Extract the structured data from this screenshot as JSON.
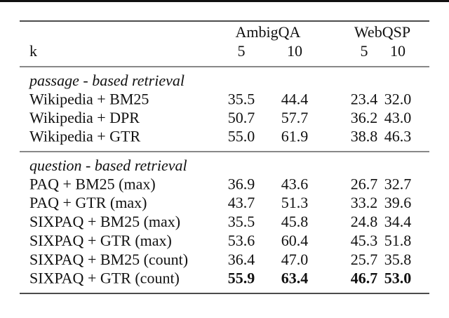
{
  "table": {
    "column_groups": [
      {
        "label": "AmbigQA",
        "ks": [
          "5",
          "10"
        ]
      },
      {
        "label": "WebQSP",
        "ks": [
          "5",
          "10"
        ]
      }
    ],
    "row_header": "k",
    "sections": [
      {
        "title": "passage - based retrieval",
        "rows": [
          {
            "label": "Wikipedia + BM25",
            "values": [
              "35.5",
              "44.4",
              "23.4",
              "32.0"
            ]
          },
          {
            "label": "Wikipedia + DPR",
            "values": [
              "50.7",
              "57.7",
              "36.2",
              "43.0"
            ]
          },
          {
            "label": "Wikipedia + GTR",
            "values": [
              "55.0",
              "61.9",
              "38.8",
              "46.3"
            ]
          }
        ]
      },
      {
        "title": "question - based retrieval",
        "rows": [
          {
            "label": "PAQ + BM25 (max)",
            "values": [
              "36.9",
              "43.6",
              "26.7",
              "32.7"
            ]
          },
          {
            "label": "PAQ + GTR (max)",
            "values": [
              "43.7",
              "51.3",
              "33.2",
              "39.6"
            ]
          },
          {
            "label": "SIXPAQ + BM25 (max)",
            "values": [
              "35.5",
              "45.8",
              "24.8",
              "34.4"
            ]
          },
          {
            "label": "SIXPAQ + GTR (max)",
            "values": [
              "53.6",
              "60.4",
              "45.3",
              "51.8"
            ]
          },
          {
            "label": "SIXPAQ + BM25 (count)",
            "values": [
              "36.4",
              "47.0",
              "25.7",
              "35.8"
            ]
          },
          {
            "label": "SIXPAQ + GTR (count)",
            "values": [
              "55.9",
              "63.4",
              "46.7",
              "53.0"
            ],
            "bold": true
          }
        ]
      }
    ]
  }
}
